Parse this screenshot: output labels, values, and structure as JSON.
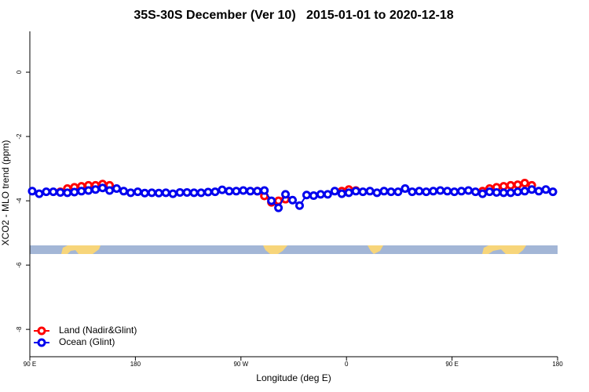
{
  "chart_data": {
    "type": "line",
    "title": "35S-30S December (Ver 10)   2015-01-01 to 2020-12-18",
    "x_label": "Longitude (deg E)",
    "y_label": "XCO2 - MLO trend (ppm)",
    "xlim": [
      90,
      540
    ],
    "ylim": [
      -8.85,
      1.27
    ],
    "xticks": [
      {
        "value": 90,
        "label": "90 E"
      },
      {
        "value": 180,
        "label": "180"
      },
      {
        "value": 270,
        "label": "90 W"
      },
      {
        "value": 360,
        "label": "0"
      },
      {
        "value": 450,
        "label": "90 E"
      },
      {
        "value": 540,
        "label": "180"
      }
    ],
    "yticks": [
      0,
      -2,
      -4,
      -6,
      -8
    ],
    "legend": "bottom-left",
    "series": [
      {
        "name": "Land (Nadir&Glint)",
        "color": "#ff0000",
        "x": [
          116,
          122,
          128,
          134,
          140,
          146,
          152,
          158,
          164,
          284,
          290,
          296,
          302,
          308,
          314,
          356,
          362,
          368,
          374,
          476,
          482,
          488,
          494,
          500,
          506,
          512,
          518
        ],
        "values": [
          -3.72,
          -3.62,
          -3.58,
          -3.55,
          -3.52,
          -3.52,
          -3.48,
          -3.52,
          null,
          -3.7,
          -3.85,
          -4.05,
          -4.0,
          -3.95,
          null,
          -3.7,
          -3.65,
          -3.68,
          null,
          -3.7,
          -3.62,
          -3.58,
          -3.55,
          -3.52,
          -3.5,
          -3.45,
          -3.52
        ]
      },
      {
        "name": "Ocean (Glint)",
        "color": "#0000ee",
        "x": [
          92,
          98,
          104,
          110,
          116,
          122,
          128,
          134,
          140,
          146,
          152,
          158,
          164,
          170,
          176,
          182,
          188,
          194,
          200,
          206,
          212,
          218,
          224,
          230,
          236,
          242,
          248,
          254,
          260,
          266,
          272,
          278,
          284,
          290,
          296,
          302,
          308,
          314,
          320,
          326,
          332,
          338,
          344,
          350,
          356,
          362,
          368,
          374,
          380,
          386,
          392,
          398,
          404,
          410,
          416,
          422,
          428,
          434,
          440,
          446,
          452,
          458,
          464,
          470,
          476,
          482,
          488,
          494,
          500,
          506,
          512,
          518,
          524,
          530,
          536
        ],
        "values": [
          -3.7,
          -3.78,
          -3.72,
          -3.72,
          -3.74,
          -3.75,
          -3.73,
          -3.7,
          -3.68,
          -3.65,
          -3.6,
          -3.68,
          -3.62,
          -3.7,
          -3.75,
          -3.72,
          -3.76,
          -3.75,
          -3.76,
          -3.75,
          -3.78,
          -3.74,
          -3.74,
          -3.75,
          -3.75,
          -3.73,
          -3.72,
          -3.66,
          -3.7,
          -3.7,
          -3.68,
          -3.7,
          -3.7,
          -3.68,
          -4.0,
          -4.22,
          -3.8,
          -3.98,
          -4.15,
          -3.82,
          -3.84,
          -3.8,
          -3.8,
          -3.7,
          -3.78,
          -3.75,
          -3.7,
          -3.72,
          -3.7,
          -3.75,
          -3.7,
          -3.72,
          -3.72,
          -3.62,
          -3.72,
          -3.7,
          -3.72,
          -3.7,
          -3.68,
          -3.7,
          -3.72,
          -3.7,
          -3.68,
          -3.72,
          -3.78,
          -3.72,
          -3.74,
          -3.75,
          -3.75,
          -3.72,
          -3.7,
          -3.65,
          -3.7,
          -3.65,
          -3.72
        ]
      }
    ]
  }
}
